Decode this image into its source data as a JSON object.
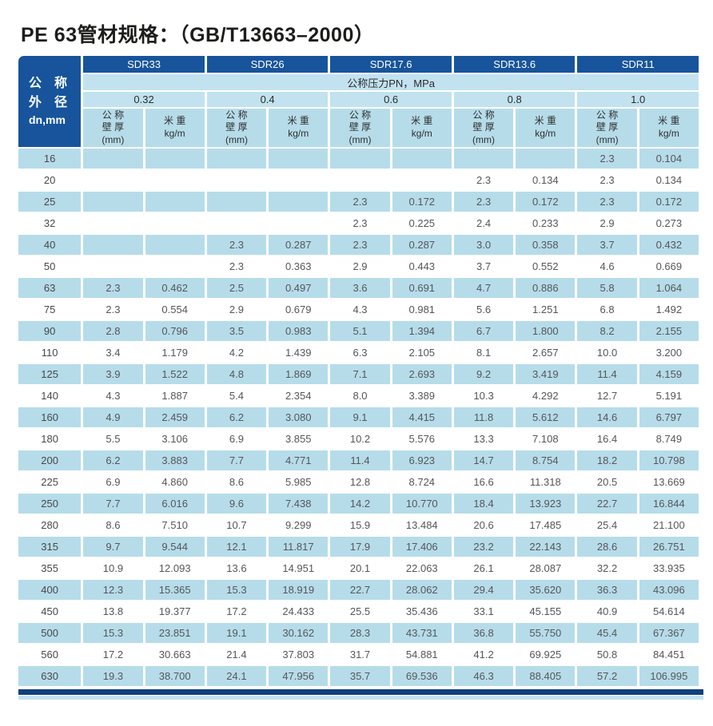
{
  "title": "PE 63管材规格：（GB/T13663–2000）",
  "colors": {
    "header_dark_blue": "#17549b",
    "header_light_blue": "#c2e2ef",
    "cell_light_blue": "#b6dcea",
    "bottom_bar_dark": "#123f7d",
    "text_dark": "#1c1c1a"
  },
  "table": {
    "corner": {
      "line1": "公　称",
      "line2": "外　径",
      "line3": "dn,mm"
    },
    "sdr_groups": [
      "SDR33",
      "SDR26",
      "SDR17.6",
      "SDR13.6",
      "SDR11"
    ],
    "pressure_header": "公称压力PN，MPa",
    "pressures": [
      "0.32",
      "0.4",
      "0.6",
      "0.8",
      "1.0"
    ],
    "col_headers": {
      "wall": "公 称\n壁 厚\n(mm)",
      "weight": "米 重\nkg/m"
    },
    "rows": [
      {
        "dn": "16",
        "values": [
          "",
          "",
          "",
          "",
          "",
          "",
          "",
          "",
          "2.3",
          "0.104"
        ]
      },
      {
        "dn": "20",
        "values": [
          "",
          "",
          "",
          "",
          "",
          "",
          "2.3",
          "0.134",
          "2.3",
          "0.134"
        ]
      },
      {
        "dn": "25",
        "values": [
          "",
          "",
          "",
          "",
          "2.3",
          "0.172",
          "2.3",
          "0.172",
          "2.3",
          "0.172"
        ]
      },
      {
        "dn": "32",
        "values": [
          "",
          "",
          "",
          "",
          "2.3",
          "0.225",
          "2.4",
          "0.233",
          "2.9",
          "0.273"
        ]
      },
      {
        "dn": "40",
        "values": [
          "",
          "",
          "2.3",
          "0.287",
          "2.3",
          "0.287",
          "3.0",
          "0.358",
          "3.7",
          "0.432"
        ]
      },
      {
        "dn": "50",
        "values": [
          "",
          "",
          "2.3",
          "0.363",
          "2.9",
          "0.443",
          "3.7",
          "0.552",
          "4.6",
          "0.669"
        ]
      },
      {
        "dn": "63",
        "values": [
          "2.3",
          "0.462",
          "2.5",
          "0.497",
          "3.6",
          "0.691",
          "4.7",
          "0.886",
          "5.8",
          "1.064"
        ]
      },
      {
        "dn": "75",
        "values": [
          "2.3",
          "0.554",
          "2.9",
          "0.679",
          "4.3",
          "0.981",
          "5.6",
          "1.251",
          "6.8",
          "1.492"
        ]
      },
      {
        "dn": "90",
        "values": [
          "2.8",
          "0.796",
          "3.5",
          "0.983",
          "5.1",
          "1.394",
          "6.7",
          "1.800",
          "8.2",
          "2.155"
        ]
      },
      {
        "dn": "110",
        "values": [
          "3.4",
          "1.179",
          "4.2",
          "1.439",
          "6.3",
          "2.105",
          "8.1",
          "2.657",
          "10.0",
          "3.200"
        ]
      },
      {
        "dn": "125",
        "values": [
          "3.9",
          "1.522",
          "4.8",
          "1.869",
          "7.1",
          "2.693",
          "9.2",
          "3.419",
          "11.4",
          "4.159"
        ]
      },
      {
        "dn": "140",
        "values": [
          "4.3",
          "1.887",
          "5.4",
          "2.354",
          "8.0",
          "3.389",
          "10.3",
          "4.292",
          "12.7",
          "5.191"
        ]
      },
      {
        "dn": "160",
        "values": [
          "4.9",
          "2.459",
          "6.2",
          "3.080",
          "9.1",
          "4.415",
          "11.8",
          "5.612",
          "14.6",
          "6.797"
        ]
      },
      {
        "dn": "180",
        "values": [
          "5.5",
          "3.106",
          "6.9",
          "3.855",
          "10.2",
          "5.576",
          "13.3",
          "7.108",
          "16.4",
          "8.749"
        ]
      },
      {
        "dn": "200",
        "values": [
          "6.2",
          "3.883",
          "7.7",
          "4.771",
          "11.4",
          "6.923",
          "14.7",
          "8.754",
          "18.2",
          "10.798"
        ]
      },
      {
        "dn": "225",
        "values": [
          "6.9",
          "4.860",
          "8.6",
          "5.985",
          "12.8",
          "8.724",
          "16.6",
          "11.318",
          "20.5",
          "13.669"
        ]
      },
      {
        "dn": "250",
        "values": [
          "7.7",
          "6.016",
          "9.6",
          "7.438",
          "14.2",
          "10.770",
          "18.4",
          "13.923",
          "22.7",
          "16.844"
        ]
      },
      {
        "dn": "280",
        "values": [
          "8.6",
          "7.510",
          "10.7",
          "9.299",
          "15.9",
          "13.484",
          "20.6",
          "17.485",
          "25.4",
          "21.100"
        ]
      },
      {
        "dn": "315",
        "values": [
          "9.7",
          "9.544",
          "12.1",
          "11.817",
          "17.9",
          "17.406",
          "23.2",
          "22.143",
          "28.6",
          "26.751"
        ]
      },
      {
        "dn": "355",
        "values": [
          "10.9",
          "12.093",
          "13.6",
          "14.951",
          "20.1",
          "22.063",
          "26.1",
          "28.087",
          "32.2",
          "33.935"
        ]
      },
      {
        "dn": "400",
        "values": [
          "12.3",
          "15.365",
          "15.3",
          "18.919",
          "22.7",
          "28.062",
          "29.4",
          "35.620",
          "36.3",
          "43.096"
        ]
      },
      {
        "dn": "450",
        "values": [
          "13.8",
          "19.377",
          "17.2",
          "24.433",
          "25.5",
          "35.436",
          "33.1",
          "45.155",
          "40.9",
          "54.614"
        ]
      },
      {
        "dn": "500",
        "values": [
          "15.3",
          "23.851",
          "19.1",
          "30.162",
          "28.3",
          "43.731",
          "36.8",
          "55.750",
          "45.4",
          "67.367"
        ]
      },
      {
        "dn": "560",
        "values": [
          "17.2",
          "30.663",
          "21.4",
          "37.803",
          "31.7",
          "54.881",
          "41.2",
          "69.925",
          "50.8",
          "84.451"
        ]
      },
      {
        "dn": "630",
        "values": [
          "19.3",
          "38.700",
          "24.1",
          "47.956",
          "35.7",
          "69.536",
          "46.3",
          "88.405",
          "57.2",
          "106.995"
        ]
      }
    ]
  }
}
